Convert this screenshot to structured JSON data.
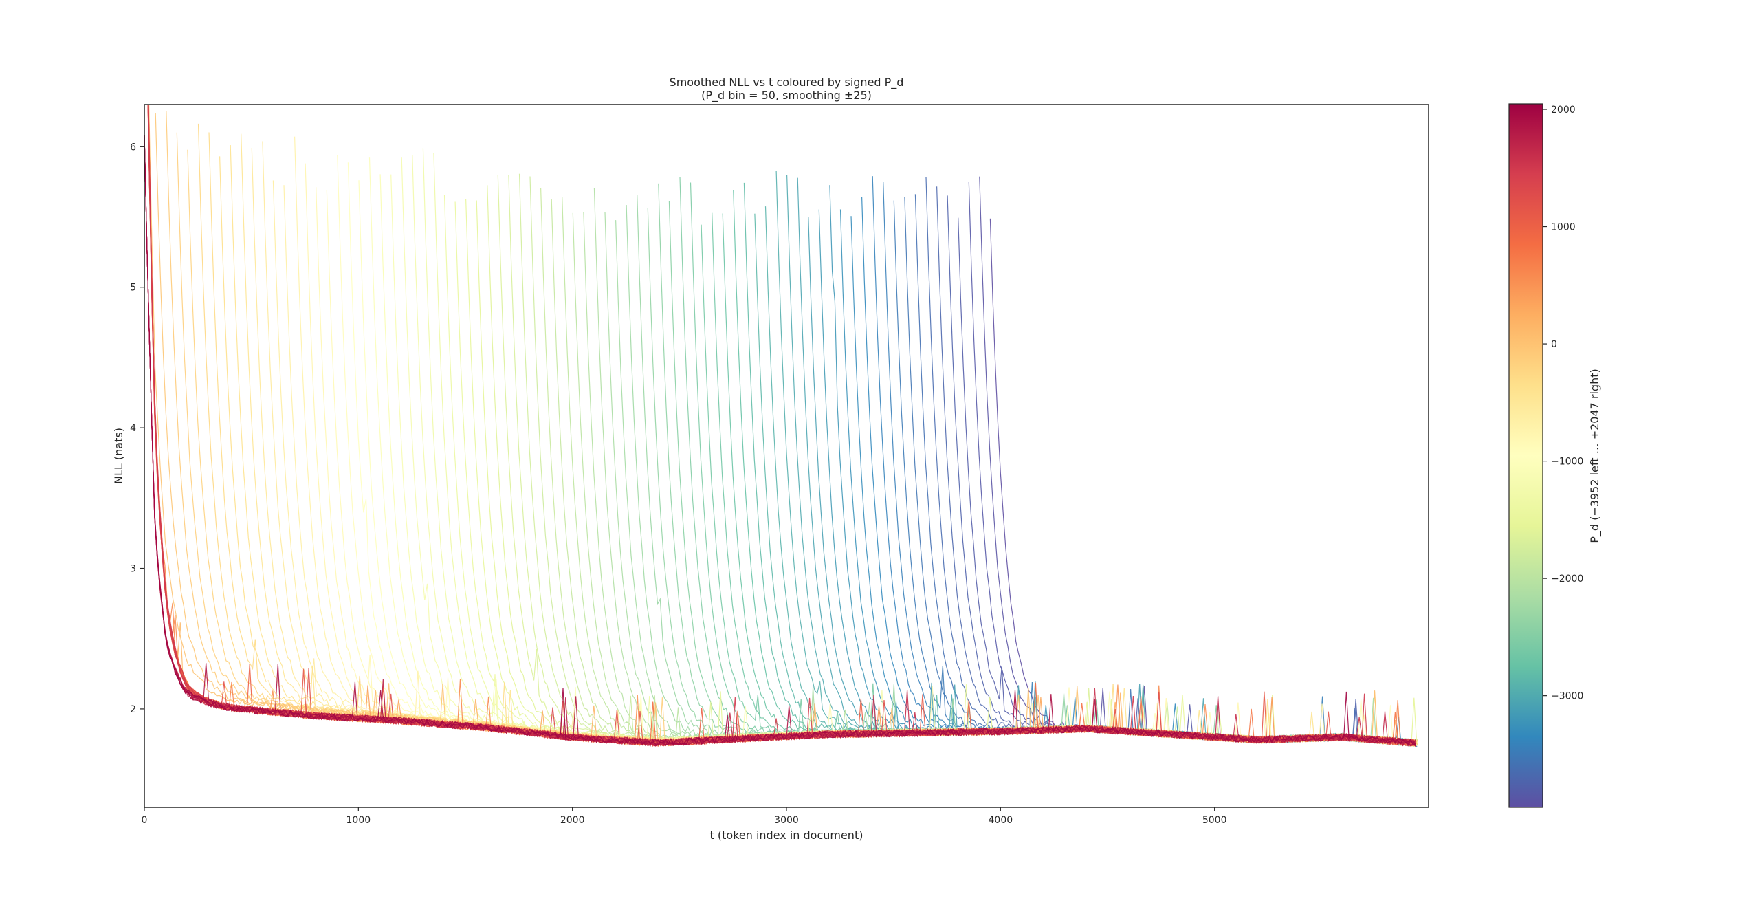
{
  "chart_data": {
    "type": "line",
    "title": "Smoothed NLL vs t   coloured by signed P_d",
    "subtitle": "(P_d bin = 50, smoothing ±25)",
    "xlabel": "t  (token index in document)",
    "ylabel": "NLL (nats)",
    "xlim": [
      0,
      6000
    ],
    "ylim": [
      1.3,
      6.3
    ],
    "xticks": [
      {
        "value": 0,
        "label": "0"
      },
      {
        "value": 1000,
        "label": "1000"
      },
      {
        "value": 2000,
        "label": "2000"
      },
      {
        "value": 3000,
        "label": "3000"
      },
      {
        "value": 4000,
        "label": "4000"
      },
      {
        "value": 5000,
        "label": "5000"
      }
    ],
    "yticks": [
      {
        "value": 2,
        "label": "2"
      },
      {
        "value": 3,
        "label": "3"
      },
      {
        "value": 4,
        "label": "4"
      },
      {
        "value": 5,
        "label": "5"
      },
      {
        "value": 6,
        "label": "6"
      }
    ],
    "grid": false,
    "legend": "none",
    "colormap": "Spectral",
    "colormap_stops": [
      "#5e4fa2",
      "#3288bd",
      "#66c2a5",
      "#abdda4",
      "#e6f598",
      "#ffffbf",
      "#fee08b",
      "#fdae61",
      "#f46d43",
      "#d53e4f",
      "#9e0142"
    ],
    "colorbar": {
      "label": "P_d  (−3952 left … +2047 right)",
      "range": [
        -3952,
        2047
      ],
      "ticks": [
        {
          "value": 2000,
          "label": "2000"
        },
        {
          "value": 1000,
          "label": "1000"
        },
        {
          "value": 0,
          "label": "0"
        },
        {
          "value": -1000,
          "label": "−1000"
        },
        {
          "value": -2000,
          "label": "−2000"
        },
        {
          "value": -3000,
          "label": "−3000"
        }
      ]
    },
    "series_rule": "One curve per P_d bin (bin width 50) from −3952 to +2047; curve for bin P_d starts at t = max(0, −P_d) with an initial NLL near 6 and decays to a baseline of ~2.05 at t≈300 falling to ~1.75 around t≈2200–5900.",
    "baseline": {
      "t": [
        0,
        50,
        100,
        200,
        400,
        800,
        1200,
        1600,
        2000,
        2400,
        2800,
        3200,
        3600,
        4000,
        4400,
        4800,
        5200,
        5600,
        6000
      ],
      "nll": [
        4.1,
        2.5,
        2.2,
        2.08,
        2.02,
        1.96,
        1.92,
        1.87,
        1.8,
        1.76,
        1.79,
        1.82,
        1.83,
        1.84,
        1.86,
        1.82,
        1.78,
        1.8,
        1.75
      ]
    },
    "series_sample": [
      {
        "pd": 2047,
        "t_start": 0,
        "nll_start": 4.1
      },
      {
        "pd": 0,
        "t_start": 0,
        "nll_start": 5.95
      },
      {
        "pd": -1000,
        "t_start": 1000,
        "nll_start": 6.05
      },
      {
        "pd": -2000,
        "t_start": 2000,
        "nll_start": 5.9
      },
      {
        "pd": -2900,
        "t_start": 2900,
        "nll_start": 6.15
      },
      {
        "pd": -3880,
        "t_start": 3880,
        "nll_start": 5.85
      }
    ]
  }
}
